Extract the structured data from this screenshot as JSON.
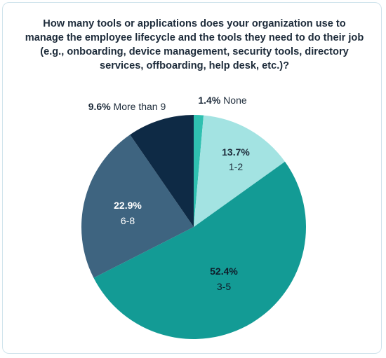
{
  "chart_data": {
    "type": "pie",
    "title": "How many tools or applications does your organization use to manage the employee lifecycle and the tools they need to do their job (e.g., onboarding, device management, security tools, directory services, offboarding, help desk, etc.)?",
    "slices": [
      {
        "label": "None",
        "value": 1.4,
        "pct_text": "1.4%",
        "color": "#2fc0b0",
        "text_color": "#1d2b3a",
        "label_position": "outside"
      },
      {
        "label": "1-2",
        "value": 13.7,
        "pct_text": "13.7%",
        "color": "#a3e3e2",
        "text_color": "#1d2b3a",
        "label_position": "inside"
      },
      {
        "label": "3-5",
        "value": 52.4,
        "pct_text": "52.4%",
        "color": "#139b95",
        "text_color": "#0f1c2a",
        "label_position": "inside"
      },
      {
        "label": "6-8",
        "value": 22.9,
        "pct_text": "22.9%",
        "color": "#3e6480",
        "text_color": "#ffffff",
        "label_position": "inside"
      },
      {
        "label": "More than 9",
        "value": 9.6,
        "pct_text": "9.6%",
        "color": "#0e2a45",
        "text_color": "#1d2b3a",
        "label_position": "outside"
      }
    ]
  }
}
